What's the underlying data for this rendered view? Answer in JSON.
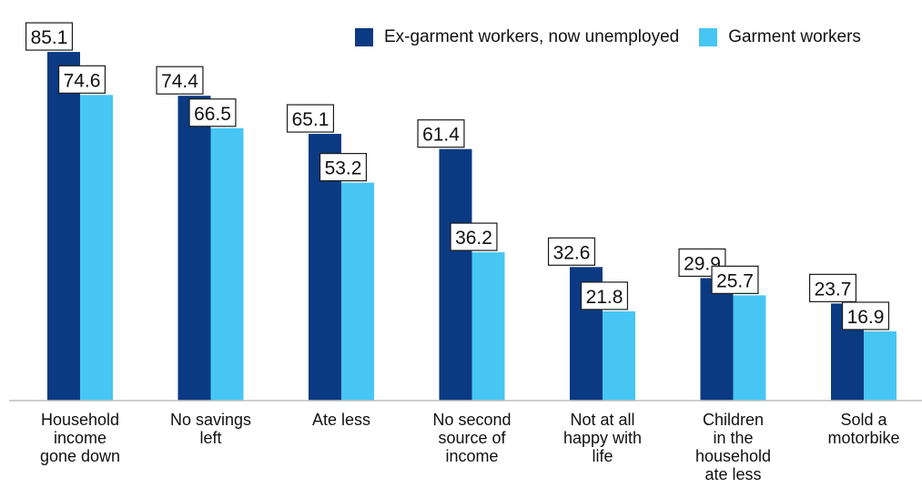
{
  "chart_data": {
    "type": "bar",
    "title": "",
    "xlabel": "",
    "ylabel": "",
    "ylim": [
      0,
      90
    ],
    "grid": false,
    "legend_position": "top-right",
    "categories": [
      [
        "Household",
        "income",
        "gone down"
      ],
      [
        "No savings",
        "left"
      ],
      [
        "Ate less"
      ],
      [
        "No second",
        "source of",
        "income"
      ],
      [
        "Not at all",
        "happy with",
        "life"
      ],
      [
        "Children",
        "in the",
        "household",
        "ate less"
      ],
      [
        "Sold a",
        "motorbike"
      ]
    ],
    "series": [
      {
        "name": "Ex-garment workers, now unemployed",
        "color": "#0b3a82",
        "values": [
          85.1,
          74.4,
          65.1,
          61.4,
          32.6,
          29.9,
          23.7
        ]
      },
      {
        "name": "Garment workers",
        "color": "#47c6f4",
        "values": [
          74.6,
          66.5,
          53.2,
          36.2,
          21.8,
          25.7,
          16.9
        ]
      }
    ],
    "value_labels": [
      [
        "85.1",
        "74.4",
        "65.1",
        "61.4",
        "32.6",
        "29.9",
        "23.7"
      ],
      [
        "74.6",
        "66.5",
        "53.2",
        "36.2",
        "21.8",
        "25.7",
        "16.9"
      ]
    ]
  }
}
